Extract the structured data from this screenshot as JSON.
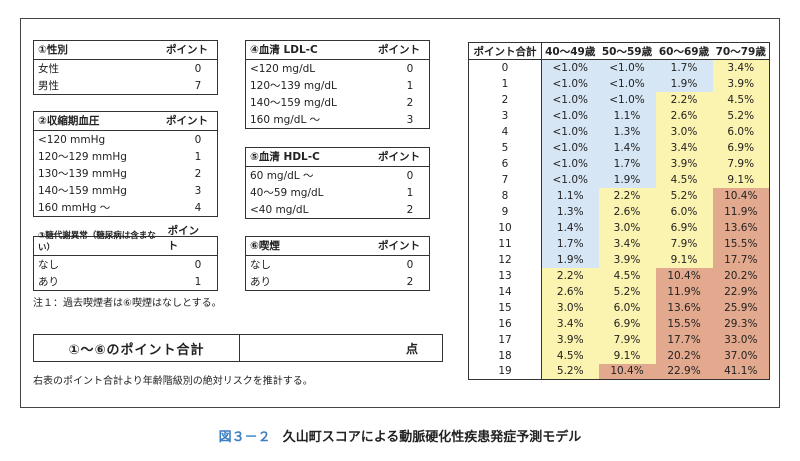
{
  "sections": {
    "sex": {
      "title": "①性別",
      "points_header": "ポイント",
      "rows": [
        {
          "label": "女性",
          "value": "0"
        },
        {
          "label": "男性",
          "value": "7"
        }
      ]
    },
    "sbp": {
      "title": "②収縮期血圧",
      "points_header": "ポイント",
      "rows": [
        {
          "label": "<120 mmHg",
          "value": "0"
        },
        {
          "label": "120～129 mmHg",
          "value": "1"
        },
        {
          "label": "130～139 mmHg",
          "value": "2"
        },
        {
          "label": "140～159 mmHg",
          "value": "3"
        },
        {
          "label": "160 mmHg ～",
          "value": "4"
        }
      ]
    },
    "glucose": {
      "title": "③糖代謝異常（糖尿病は含まない）",
      "points_header": "ポイント",
      "rows": [
        {
          "label": "なし",
          "value": "0"
        },
        {
          "label": "あり",
          "value": "1"
        }
      ]
    },
    "ldl": {
      "title": "④血清 LDL-C",
      "points_header": "ポイント",
      "rows": [
        {
          "label": "<120 mg/dL",
          "value": "0"
        },
        {
          "label": "120～139 mg/dL",
          "value": "1"
        },
        {
          "label": "140～159 mg/dL",
          "value": "2"
        },
        {
          "label": "160 mg/dL ～",
          "value": "3"
        }
      ]
    },
    "hdl": {
      "title": "⑤血清 HDL-C",
      "points_header": "ポイント",
      "rows": [
        {
          "label": "60 mg/dL ～",
          "value": "0"
        },
        {
          "label": "40～59 mg/dL",
          "value": "1"
        },
        {
          "label": "<40 mg/dL",
          "value": "2"
        }
      ]
    },
    "smoking": {
      "title": "⑥喫煙",
      "points_header": "ポイント",
      "rows": [
        {
          "label": "なし",
          "value": "0"
        },
        {
          "label": "あり",
          "value": "2"
        }
      ]
    }
  },
  "note": "注１：過去喫煙者は⑥喫煙はなしとする。",
  "sum": {
    "label": "①～⑥のポイント合計",
    "unit": "点"
  },
  "footer": "右表のポイント合計より年齢階級別の絶対リスクを推計する。",
  "risk_table": {
    "headers": [
      "ポイント合計",
      "40～49歳",
      "50～59歳",
      "60～69歳",
      "70～79歳"
    ],
    "rows": [
      {
        "points": "0",
        "values": [
          "<1.0%",
          "<1.0%",
          "1.7%",
          "3.4%"
        ],
        "levels": [
          "b",
          "b",
          "b",
          "y"
        ]
      },
      {
        "points": "1",
        "values": [
          "<1.0%",
          "<1.0%",
          "1.9%",
          "3.9%"
        ],
        "levels": [
          "b",
          "b",
          "b",
          "y"
        ]
      },
      {
        "points": "2",
        "values": [
          "<1.0%",
          "<1.0%",
          "2.2%",
          "4.5%"
        ],
        "levels": [
          "b",
          "b",
          "y",
          "y"
        ]
      },
      {
        "points": "3",
        "values": [
          "<1.0%",
          "1.1%",
          "2.6%",
          "5.2%"
        ],
        "levels": [
          "b",
          "b",
          "y",
          "y"
        ]
      },
      {
        "points": "4",
        "values": [
          "<1.0%",
          "1.3%",
          "3.0%",
          "6.0%"
        ],
        "levels": [
          "b",
          "b",
          "y",
          "y"
        ]
      },
      {
        "points": "5",
        "values": [
          "<1.0%",
          "1.4%",
          "3.4%",
          "6.9%"
        ],
        "levels": [
          "b",
          "b",
          "y",
          "y"
        ]
      },
      {
        "points": "6",
        "values": [
          "<1.0%",
          "1.7%",
          "3.9%",
          "7.9%"
        ],
        "levels": [
          "b",
          "b",
          "y",
          "y"
        ]
      },
      {
        "points": "7",
        "values": [
          "<1.0%",
          "1.9%",
          "4.5%",
          "9.1%"
        ],
        "levels": [
          "b",
          "b",
          "y",
          "y"
        ]
      },
      {
        "points": "8",
        "values": [
          "1.1%",
          "2.2%",
          "5.2%",
          "10.4%"
        ],
        "levels": [
          "b",
          "y",
          "y",
          "r"
        ]
      },
      {
        "points": "9",
        "values": [
          "1.3%",
          "2.6%",
          "6.0%",
          "11.9%"
        ],
        "levels": [
          "b",
          "y",
          "y",
          "r"
        ]
      },
      {
        "points": "10",
        "values": [
          "1.4%",
          "3.0%",
          "6.9%",
          "13.6%"
        ],
        "levels": [
          "b",
          "y",
          "y",
          "r"
        ]
      },
      {
        "points": "11",
        "values": [
          "1.7%",
          "3.4%",
          "7.9%",
          "15.5%"
        ],
        "levels": [
          "b",
          "y",
          "y",
          "r"
        ]
      },
      {
        "points": "12",
        "values": [
          "1.9%",
          "3.9%",
          "9.1%",
          "17.7%"
        ],
        "levels": [
          "b",
          "y",
          "y",
          "r"
        ]
      },
      {
        "points": "13",
        "values": [
          "2.2%",
          "4.5%",
          "10.4%",
          "20.2%"
        ],
        "levels": [
          "y",
          "y",
          "r",
          "r"
        ]
      },
      {
        "points": "14",
        "values": [
          "2.6%",
          "5.2%",
          "11.9%",
          "22.9%"
        ],
        "levels": [
          "y",
          "y",
          "r",
          "r"
        ]
      },
      {
        "points": "15",
        "values": [
          "3.0%",
          "6.0%",
          "13.6%",
          "25.9%"
        ],
        "levels": [
          "y",
          "y",
          "r",
          "r"
        ]
      },
      {
        "points": "16",
        "values": [
          "3.4%",
          "6.9%",
          "15.5%",
          "29.3%"
        ],
        "levels": [
          "y",
          "y",
          "r",
          "r"
        ]
      },
      {
        "points": "17",
        "values": [
          "3.9%",
          "7.9%",
          "17.7%",
          "33.0%"
        ],
        "levels": [
          "y",
          "y",
          "r",
          "r"
        ]
      },
      {
        "points": "18",
        "values": [
          "4.5%",
          "9.1%",
          "20.2%",
          "37.0%"
        ],
        "levels": [
          "y",
          "y",
          "r",
          "r"
        ]
      },
      {
        "points": "19",
        "values": [
          "5.2%",
          "10.4%",
          "22.9%",
          "41.1%"
        ],
        "levels": [
          "y",
          "r",
          "r",
          "r"
        ]
      }
    ]
  },
  "colors": {
    "b": "#d6e6f4",
    "y": "#fbf3b0",
    "r": "#e3a98f",
    "caption_number": "#3a7fc1"
  },
  "caption": {
    "number": "図３－２",
    "title": "久山町スコアによる動脈硬化性疾患発症予測モデル"
  }
}
